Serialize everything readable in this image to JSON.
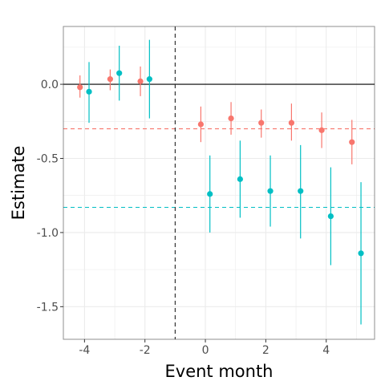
{
  "chart_data": {
    "type": "scatter",
    "xlabel": "Event month",
    "ylabel": "Estimate",
    "xlim": [
      -4.7,
      5.6
    ],
    "ylim": [
      -1.72,
      0.39
    ],
    "x_ticks": [
      -4,
      -2,
      0,
      2,
      4
    ],
    "x_tick_labels": [
      "-4",
      "-2",
      "0",
      "2",
      "4"
    ],
    "y_ticks": [
      0.0,
      -0.5,
      -1.0,
      -1.5
    ],
    "y_tick_labels": [
      "0.0",
      "-0.5",
      "-1.0",
      "-1.5"
    ],
    "grid": true,
    "legend": "none",
    "reference_lines": {
      "zero_line_y": 0,
      "event_line_x": -1
    },
    "series": [
      {
        "color": "#F8766D",
        "mean_line": -0.3,
        "points": [
          {
            "x": -4.15,
            "y": -0.02,
            "lo": -0.09,
            "hi": 0.06
          },
          {
            "x": -3.15,
            "y": 0.035,
            "lo": -0.04,
            "hi": 0.1
          },
          {
            "x": -2.15,
            "y": 0.02,
            "lo": -0.08,
            "hi": 0.12
          },
          {
            "x": -0.15,
            "y": -0.27,
            "lo": -0.39,
            "hi": -0.15
          },
          {
            "x": 0.85,
            "y": -0.23,
            "lo": -0.34,
            "hi": -0.12
          },
          {
            "x": 1.85,
            "y": -0.26,
            "lo": -0.36,
            "hi": -0.17
          },
          {
            "x": 2.85,
            "y": -0.26,
            "lo": -0.38,
            "hi": -0.13
          },
          {
            "x": 3.85,
            "y": -0.31,
            "lo": -0.43,
            "hi": -0.19
          },
          {
            "x": 4.85,
            "y": -0.39,
            "lo": -0.54,
            "hi": -0.24
          }
        ]
      },
      {
        "color": "#00BFC4",
        "mean_line": -0.83,
        "points": [
          {
            "x": -3.85,
            "y": -0.05,
            "lo": -0.26,
            "hi": 0.15
          },
          {
            "x": -2.85,
            "y": 0.075,
            "lo": -0.11,
            "hi": 0.26
          },
          {
            "x": -1.85,
            "y": 0.035,
            "lo": -0.23,
            "hi": 0.3
          },
          {
            "x": 0.15,
            "y": -0.74,
            "lo": -1.0,
            "hi": -0.48
          },
          {
            "x": 1.15,
            "y": -0.64,
            "lo": -0.9,
            "hi": -0.38
          },
          {
            "x": 2.15,
            "y": -0.72,
            "lo": -0.96,
            "hi": -0.48
          },
          {
            "x": 3.15,
            "y": -0.72,
            "lo": -1.04,
            "hi": -0.41
          },
          {
            "x": 4.15,
            "y": -0.89,
            "lo": -1.22,
            "hi": -0.56
          },
          {
            "x": 5.15,
            "y": -1.14,
            "lo": -1.62,
            "hi": -0.66
          }
        ]
      }
    ]
  }
}
